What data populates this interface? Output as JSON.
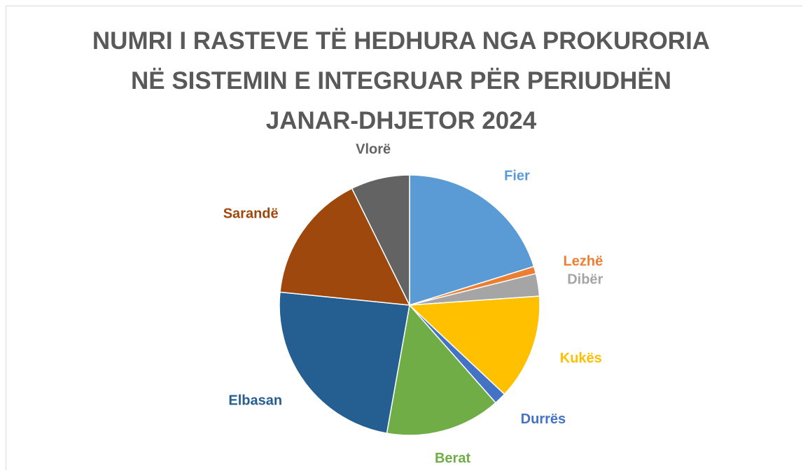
{
  "chart_data": {
    "type": "pie",
    "title": "NUMRI I RASTEVE TË HEDHURA NGA PROKURORIA NË SISTEMIN E INTEGRUAR PËR PERIUDHËN JANAR-DHJETOR 2024",
    "categories": [
      "Fier",
      "Lezhë",
      "Dibër",
      "Kukës",
      "Durrës",
      "Berat",
      "Elbasan",
      "Sarandë",
      "Vlorë"
    ],
    "values": [
      20.2,
      0.9,
      2.8,
      13.1,
      1.5,
      14.3,
      23.8,
      16.1,
      7.3
    ],
    "colors": [
      "#5b9bd5",
      "#ed7d31",
      "#a5a5a5",
      "#ffc000",
      "#4472c4",
      "#70ad47",
      "#255e91",
      "#9e480e",
      "#636363"
    ]
  }
}
